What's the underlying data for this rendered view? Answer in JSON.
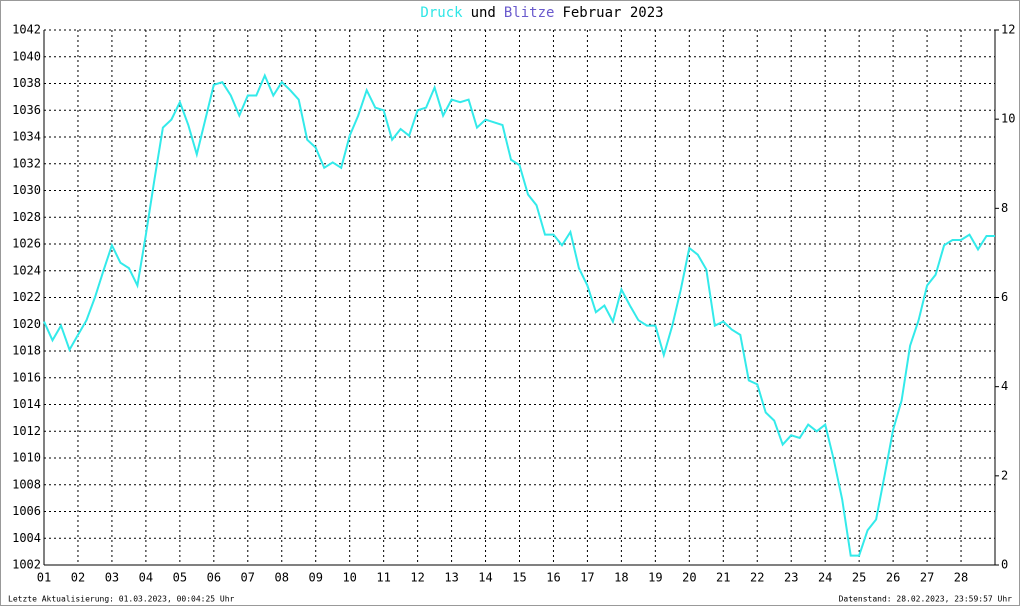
{
  "chart_data": {
    "type": "line",
    "title_parts": [
      {
        "text": "Druck",
        "color": "#2fe6e6"
      },
      {
        "text": "und",
        "color": "#000000"
      },
      {
        "text": "Blitze",
        "color": "#6a5acd"
      },
      {
        "text": "Februar 2023",
        "color": "#000000"
      }
    ],
    "footer_left": "Letzte Aktualisierung: 01.03.2023, 00:04:25 Uhr",
    "footer_right": "Datenstand: 28.02.2023, 23:59:57 Uhr",
    "grid": true,
    "xlim": [
      1,
      29
    ],
    "xticks": [
      {
        "value": 1,
        "label": "01"
      },
      {
        "value": 2,
        "label": "02"
      },
      {
        "value": 3,
        "label": "03"
      },
      {
        "value": 4,
        "label": "04"
      },
      {
        "value": 5,
        "label": "05"
      },
      {
        "value": 6,
        "label": "06"
      },
      {
        "value": 7,
        "label": "07"
      },
      {
        "value": 8,
        "label": "08"
      },
      {
        "value": 9,
        "label": "09"
      },
      10,
      11,
      12,
      13,
      14,
      15,
      16,
      17,
      18,
      19,
      20,
      21,
      22,
      23,
      24,
      25,
      26,
      27,
      28
    ],
    "ylim": [
      1002,
      1042
    ],
    "yticks": [
      1002,
      1004,
      1006,
      1008,
      1010,
      1012,
      1014,
      1016,
      1018,
      1020,
      1022,
      1024,
      1026,
      1028,
      1030,
      1032,
      1034,
      1036,
      1038,
      1040,
      1042
    ],
    "y2lim": [
      0,
      12
    ],
    "y2ticks": [
      0,
      2,
      4,
      6,
      8,
      10,
      12
    ],
    "x": [
      1.0,
      1.25,
      1.5,
      1.75,
      2.0,
      2.25,
      2.5,
      2.75,
      3.0,
      3.25,
      3.5,
      3.75,
      4.0,
      4.25,
      4.5,
      4.75,
      5.0,
      5.25,
      5.5,
      5.75,
      6.0,
      6.25,
      6.5,
      6.75,
      7.0,
      7.25,
      7.5,
      7.75,
      8.0,
      8.25,
      8.5,
      8.75,
      9.0,
      9.25,
      9.5,
      9.75,
      10.0,
      10.25,
      10.5,
      10.75,
      11.0,
      11.25,
      11.5,
      11.75,
      12.0,
      12.25,
      12.5,
      12.75,
      13.0,
      13.25,
      13.5,
      13.75,
      14.0,
      14.25,
      14.5,
      14.75,
      15.0,
      15.25,
      15.5,
      15.75,
      16.0,
      16.25,
      16.5,
      16.75,
      17.0,
      17.25,
      17.5,
      17.75,
      18.0,
      18.25,
      18.5,
      18.75,
      19.0,
      19.25,
      19.5,
      19.75,
      20.0,
      20.25,
      20.5,
      20.75,
      21.0,
      21.25,
      21.5,
      21.75,
      22.0,
      22.25,
      22.5,
      22.75,
      23.0,
      23.25,
      23.5,
      23.75,
      24.0,
      24.25,
      24.5,
      24.75,
      25.0,
      25.25,
      25.5,
      25.75,
      26.0,
      26.25,
      26.5,
      26.75,
      27.0,
      27.25,
      27.5,
      27.75,
      28.0,
      28.25,
      28.5,
      28.75,
      29.0
    ],
    "series": [
      {
        "name": "Druck",
        "color": "#33eaea",
        "values": [
          1020.2,
          1018.8,
          1019.9,
          1018.1,
          1019.2,
          1020.3,
          1022,
          1024,
          1025.9,
          1024.6,
          1024.2,
          1022.9,
          1026.7,
          1030.8,
          1034.7,
          1035.3,
          1036.6,
          1034.9,
          1032.7,
          1035.3,
          1037.9,
          1038.1,
          1037.1,
          1035.6,
          1037.1,
          1037.1,
          1038.6,
          1037.1,
          1038.1,
          1037.5,
          1036.8,
          1033.8,
          1033.2,
          1031.7,
          1032.1,
          1031.7,
          1034.1,
          1035.6,
          1037.5,
          1036.2,
          1036,
          1033.8,
          1034.6,
          1034.1,
          1036,
          1036.2,
          1037.7,
          1035.6,
          1036.8,
          1036.6,
          1036.8,
          1034.7,
          1035.3,
          1035.1,
          1034.9,
          1032.3,
          1031.9,
          1029.7,
          1028.9,
          1026.7,
          1026.7,
          1025.9,
          1026.9,
          1024.2,
          1022.9,
          1020.9,
          1021.4,
          1020.2,
          1022.6,
          1021.4,
          1020.3,
          1019.9,
          1019.9,
          1017.7,
          1019.9,
          1022.6,
          1025.7,
          1025.2,
          1024.1,
          1019.9,
          1020.2,
          1019.6,
          1019.2,
          1015.8,
          1015.5,
          1013.4,
          1012.8,
          1011,
          1011.7,
          1011.5,
          1012.5,
          1012,
          1012.5,
          1009.9,
          1006.9,
          1002.7,
          1002.7,
          1004.6,
          1005.4,
          1008.7,
          1012.1,
          1014.3,
          1018.4,
          1020.3,
          1022.9,
          1023.7,
          1025.9,
          1026.3,
          1026.3,
          1026.7,
          1025.6,
          1026.6,
          1026.6
        ]
      }
    ]
  }
}
